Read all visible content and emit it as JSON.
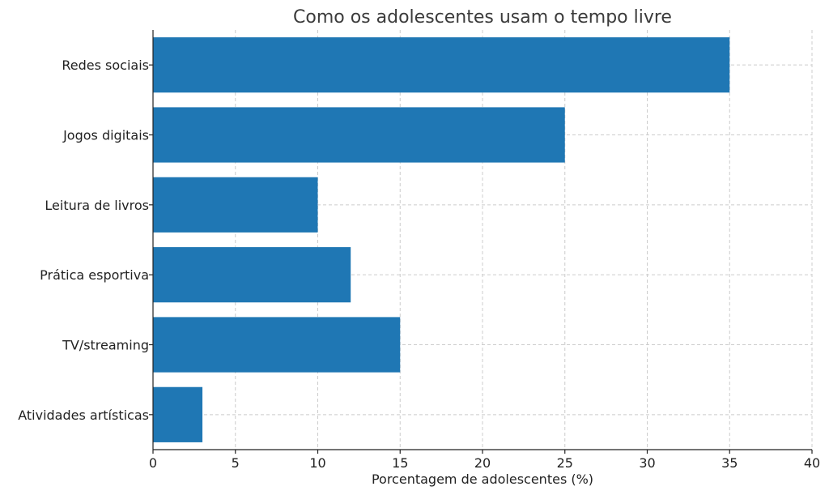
{
  "chart_data": {
    "type": "bar",
    "orientation": "horizontal",
    "title": "Como os adolescentes usam o tempo livre",
    "xlabel": "Porcentagem de adolescentes (%)",
    "ylabel": "",
    "categories": [
      "Redes sociais",
      "Jogos digitais",
      "Leitura de livros",
      "Prática esportiva",
      "TV/streaming",
      "Atividades artísticas"
    ],
    "values": [
      35,
      25,
      10,
      12,
      15,
      3
    ],
    "xlim": [
      0,
      40
    ],
    "xticks": [
      "0",
      "5",
      "10",
      "15",
      "20",
      "25",
      "30",
      "35",
      "40"
    ],
    "grid": true,
    "bar_color": "#1f77b4"
  }
}
